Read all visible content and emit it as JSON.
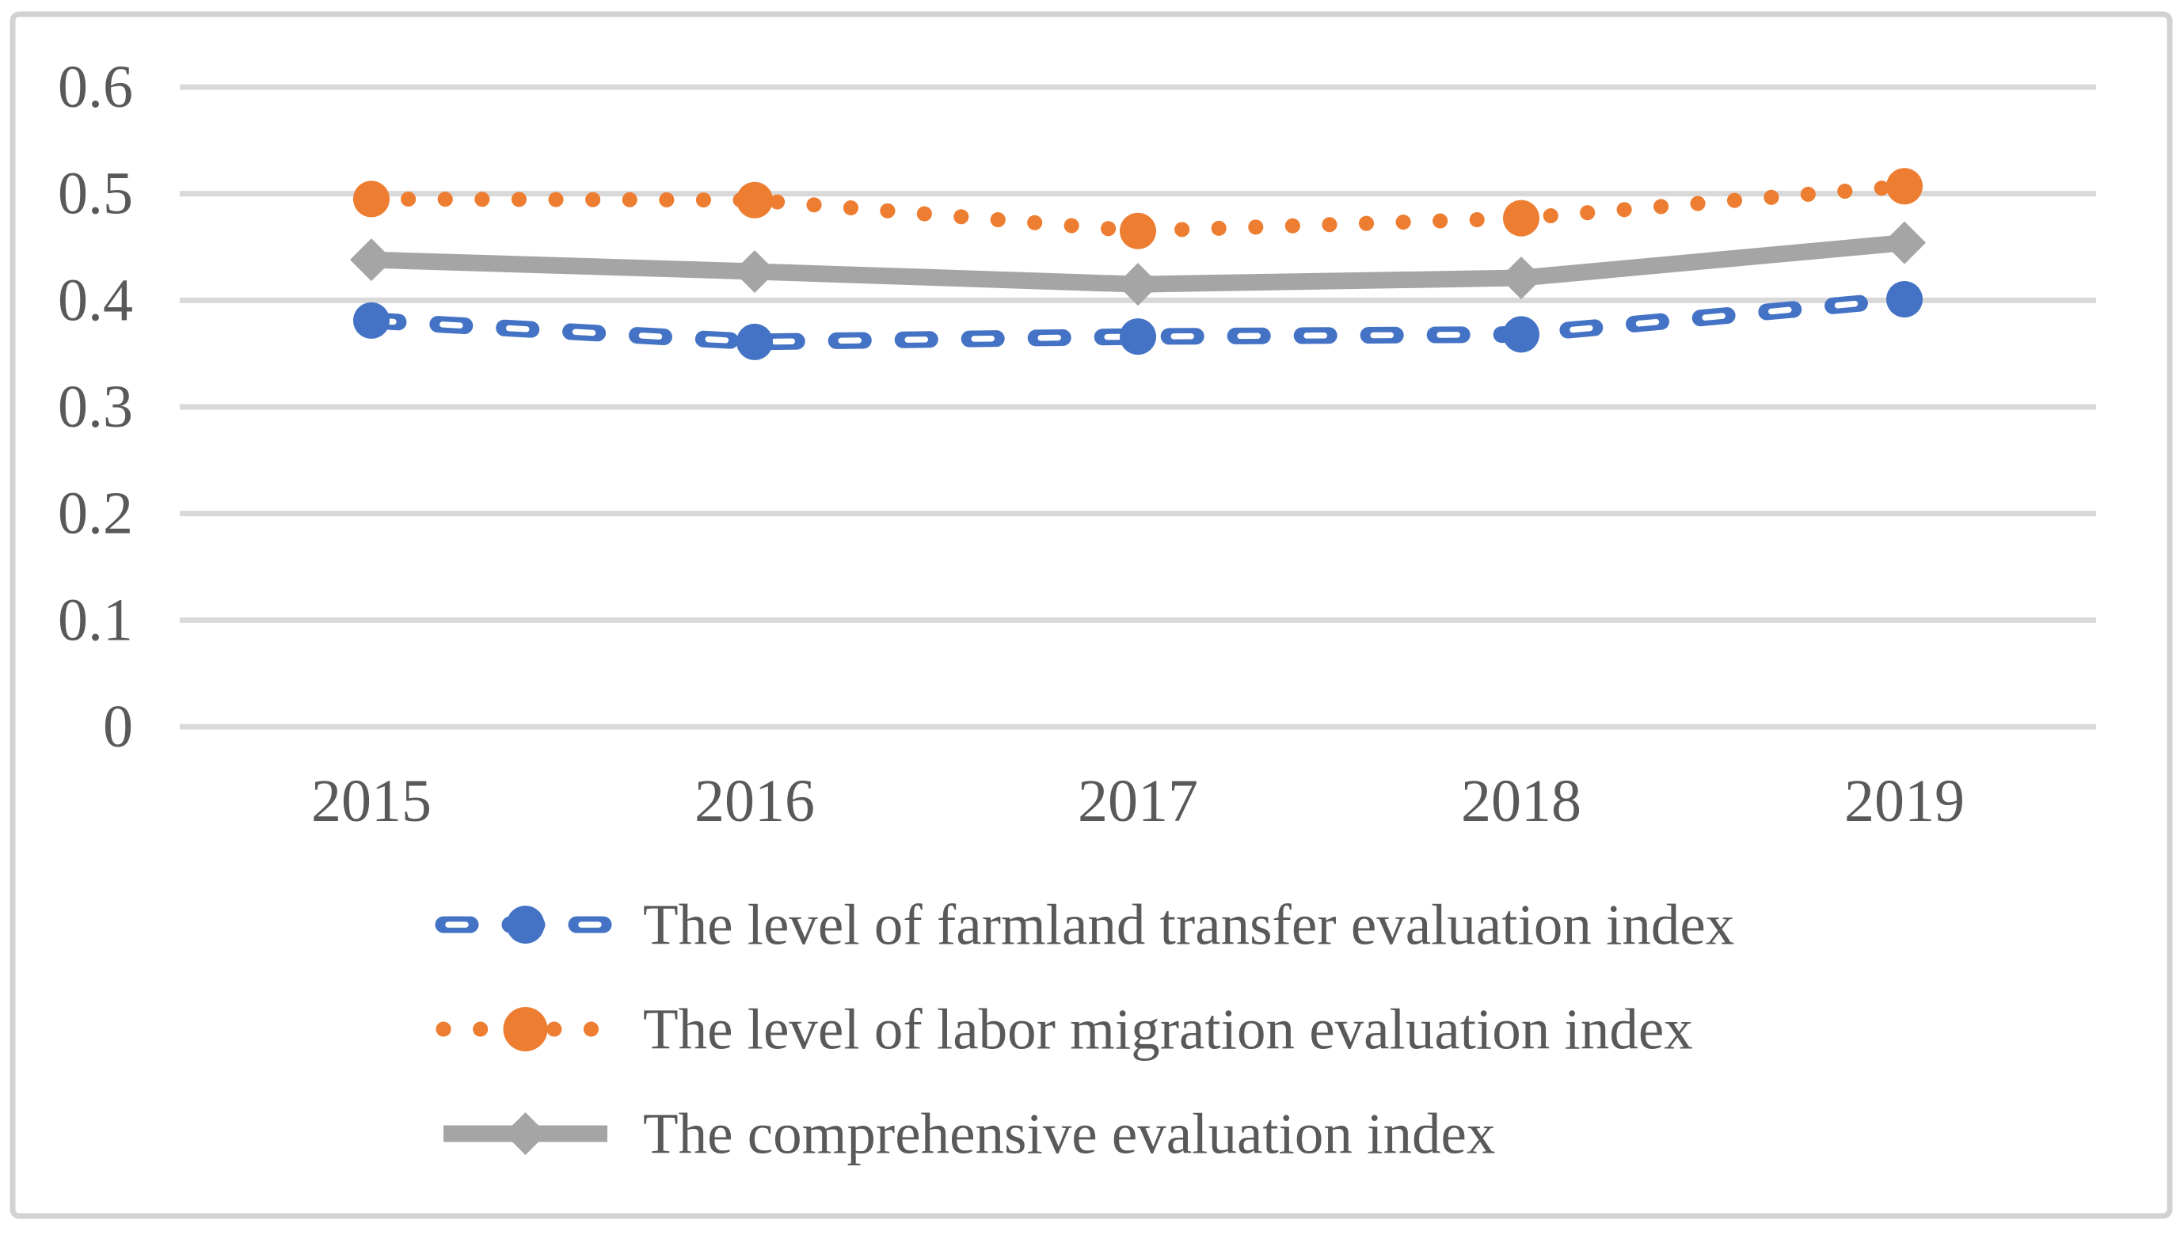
{
  "figure": {
    "background": "#ffffff",
    "border_color": "#d2d2d2",
    "axis_text_color": "#595959",
    "gridline_color": "#d9d9d9"
  },
  "chart_data": {
    "type": "line",
    "categories": [
      "2015",
      "2016",
      "2017",
      "2018",
      "2019"
    ],
    "series": [
      {
        "id": "farmland-transfer",
        "name": "The level of farmland transfer evaluation index",
        "color": "#4472C4",
        "line_style": "dashed",
        "marker": "circle",
        "values": [
          0.381,
          0.361,
          0.366,
          0.368,
          0.401
        ]
      },
      {
        "id": "labor-migration",
        "name": "The level of labor migration evaluation index",
        "color": "#ED7D31",
        "line_style": "dotted",
        "marker": "circle",
        "values": [
          0.495,
          0.494,
          0.465,
          0.477,
          0.507
        ]
      },
      {
        "id": "comprehensive",
        "name": "The comprehensive evaluation index",
        "color": "#A5A5A5",
        "line_style": "solid",
        "marker": "diamond",
        "values": [
          0.438,
          0.427,
          0.415,
          0.421,
          0.454
        ]
      }
    ],
    "title": "",
    "xlabel": "",
    "ylabel": "",
    "ylim": [
      0,
      0.6
    ],
    "ytick_step": 0.1,
    "ytick_labels": [
      "0",
      "0.1",
      "0.2",
      "0.3",
      "0.4",
      "0.5",
      "0.6"
    ],
    "grid": true,
    "legend_position": "bottom-left"
  }
}
